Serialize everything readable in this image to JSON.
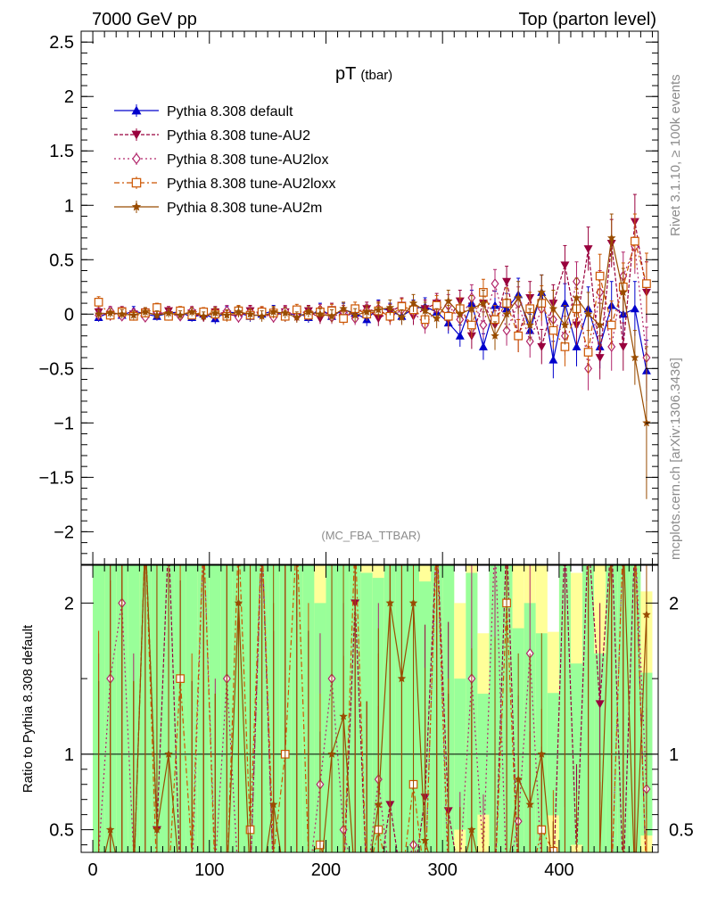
{
  "header": {
    "left_label": "7000 GeV pp",
    "right_label": "Top (parton level)"
  },
  "side_labels": {
    "rivet": "Rivet 3.1.10, ≥ 100k events",
    "mcplots": "mcplots.cern.ch [arXiv:1306.3436]"
  },
  "chart_data": {
    "type": "line",
    "title": "pT",
    "title_sub": "(tbar)",
    "analysis": "(MC_FBA_TTBAR)",
    "xlabel": "",
    "ylabel": "",
    "xlim": [
      -10,
      485
    ],
    "ylim": [
      -2.3,
      2.6
    ],
    "x_ticks": [
      "0",
      "100",
      "200",
      "300",
      "400"
    ],
    "y_ticks": [
      "−2",
      "−1.5",
      "−1",
      "−0.5",
      "0",
      "0.5",
      "1",
      "1.5",
      "2",
      "2.5"
    ],
    "ratio": {
      "ylabel": "Ratio to Pythia 8.308 default",
      "ylim": [
        0.35,
        2.25
      ],
      "y_ticks": [
        "0.5",
        "1",
        "2"
      ],
      "reference": 1
    },
    "legend_position": "top-left",
    "series": [
      {
        "name": "Pythia 8.308 default",
        "color": "#0000cc",
        "marker": "triangle-up",
        "x": [
          5,
          15,
          25,
          35,
          45,
          55,
          65,
          75,
          85,
          95,
          105,
          115,
          125,
          135,
          145,
          155,
          165,
          175,
          185,
          195,
          205,
          215,
          225,
          235,
          245,
          255,
          265,
          275,
          285,
          295,
          305,
          315,
          325,
          335,
          345,
          355,
          365,
          375,
          385,
          395,
          405,
          415,
          425,
          435,
          445,
          455,
          465,
          475
        ],
        "values": [
          -0.03,
          0.02,
          -0.01,
          0.03,
          0.0,
          -0.02,
          0.01,
          0.02,
          -0.03,
          0.0,
          -0.04,
          0.02,
          0.01,
          -0.02,
          0.0,
          0.03,
          -0.02,
          0.01,
          -0.03,
          0.05,
          -0.02,
          0.04,
          0.01,
          -0.05,
          0.06,
          0.03,
          -0.02,
          0.05,
          0.07,
          0.02,
          -0.08,
          -0.2,
          0.1,
          -0.3,
          0.08,
          0.05,
          0.18,
          -0.15,
          0.2,
          -0.42,
          0.1,
          -0.3,
          0.05,
          -0.3,
          0.08,
          0.0,
          0.05,
          -0.52
        ],
        "errors": [
          0.04,
          0.04,
          0.04,
          0.04,
          0.04,
          0.04,
          0.04,
          0.04,
          0.04,
          0.04,
          0.05,
          0.05,
          0.05,
          0.05,
          0.05,
          0.05,
          0.05,
          0.05,
          0.05,
          0.05,
          0.06,
          0.06,
          0.06,
          0.06,
          0.07,
          0.07,
          0.07,
          0.08,
          0.08,
          0.09,
          0.1,
          0.1,
          0.12,
          0.12,
          0.13,
          0.14,
          0.15,
          0.15,
          0.16,
          0.17,
          0.18,
          0.18,
          0.2,
          0.2,
          0.22,
          0.22,
          0.25,
          0.28
        ]
      },
      {
        "name": "Pythia 8.308 tune-AU2",
        "color": "#99003d",
        "marker": "triangle-down",
        "x": [
          5,
          15,
          25,
          35,
          45,
          55,
          65,
          75,
          85,
          95,
          105,
          115,
          125,
          135,
          145,
          155,
          165,
          175,
          185,
          195,
          205,
          215,
          225,
          235,
          245,
          255,
          265,
          275,
          285,
          295,
          305,
          315,
          325,
          335,
          345,
          355,
          365,
          375,
          385,
          395,
          405,
          415,
          425,
          435,
          445,
          455,
          465,
          475
        ],
        "values": [
          0.02,
          -0.02,
          0.03,
          0.0,
          0.02,
          -0.01,
          0.03,
          0.0,
          0.01,
          -0.03,
          0.02,
          0.0,
          -0.02,
          0.03,
          0.01,
          -0.02,
          0.02,
          0.0,
          0.03,
          -0.04,
          0.04,
          -0.03,
          0.02,
          0.05,
          -0.04,
          0.02,
          0.08,
          -0.02,
          0.05,
          0.1,
          -0.05,
          0.12,
          -0.2,
          0.1,
          -0.1,
          0.3,
          -0.2,
          0.15,
          -0.3,
          0.1,
          0.45,
          -0.1,
          0.6,
          -0.4,
          0.65,
          -0.3,
          0.85,
          0.2
        ],
        "errors": [
          0.04,
          0.04,
          0.04,
          0.04,
          0.04,
          0.04,
          0.04,
          0.04,
          0.04,
          0.04,
          0.05,
          0.05,
          0.05,
          0.05,
          0.05,
          0.05,
          0.05,
          0.05,
          0.05,
          0.05,
          0.06,
          0.06,
          0.06,
          0.06,
          0.07,
          0.07,
          0.07,
          0.08,
          0.08,
          0.09,
          0.1,
          0.1,
          0.12,
          0.12,
          0.13,
          0.14,
          0.15,
          0.15,
          0.16,
          0.17,
          0.18,
          0.18,
          0.2,
          0.2,
          0.22,
          0.22,
          0.25,
          0.28
        ]
      },
      {
        "name": "Pythia 8.308 tune-AU2lox",
        "color": "#b2266b",
        "marker": "diamond-open",
        "x": [
          5,
          15,
          25,
          35,
          45,
          55,
          65,
          75,
          85,
          95,
          105,
          115,
          125,
          135,
          145,
          155,
          165,
          175,
          185,
          195,
          205,
          215,
          225,
          235,
          245,
          255,
          265,
          275,
          285,
          295,
          305,
          315,
          325,
          335,
          345,
          355,
          365,
          375,
          385,
          395,
          405,
          415,
          425,
          435,
          445,
          455,
          465,
          475
        ],
        "values": [
          -0.01,
          0.03,
          -0.02,
          0.01,
          -0.03,
          0.02,
          0.0,
          -0.02,
          0.03,
          0.01,
          -0.01,
          0.03,
          -0.03,
          0.02,
          0.0,
          -0.03,
          0.03,
          -0.02,
          0.01,
          0.04,
          -0.03,
          0.02,
          -0.04,
          0.03,
          0.05,
          -0.03,
          0.04,
          0.02,
          -0.1,
          0.05,
          0.08,
          -0.05,
          0.15,
          -0.1,
          0.28,
          -0.15,
          0.1,
          -0.25,
          0.05,
          -0.05,
          -0.2,
          0.3,
          -0.5,
          0.2,
          -0.3,
          0.35,
          0.62,
          -0.4
        ],
        "errors": [
          0.04,
          0.04,
          0.04,
          0.04,
          0.04,
          0.04,
          0.04,
          0.04,
          0.04,
          0.04,
          0.05,
          0.05,
          0.05,
          0.05,
          0.05,
          0.05,
          0.05,
          0.05,
          0.05,
          0.05,
          0.06,
          0.06,
          0.06,
          0.06,
          0.07,
          0.07,
          0.07,
          0.08,
          0.08,
          0.09,
          0.1,
          0.1,
          0.12,
          0.12,
          0.13,
          0.14,
          0.15,
          0.15,
          0.16,
          0.17,
          0.18,
          0.18,
          0.2,
          0.2,
          0.22,
          0.22,
          0.25,
          0.28
        ]
      },
      {
        "name": "Pythia 8.308 tune-AU2loxx",
        "color": "#cc5500",
        "marker": "square-open",
        "x": [
          5,
          15,
          25,
          35,
          45,
          55,
          65,
          75,
          85,
          95,
          105,
          115,
          125,
          135,
          145,
          155,
          165,
          175,
          185,
          195,
          205,
          215,
          225,
          235,
          245,
          255,
          265,
          275,
          285,
          295,
          305,
          315,
          325,
          335,
          345,
          355,
          365,
          375,
          385,
          395,
          405,
          415,
          425,
          435,
          445,
          455,
          465,
          475
        ],
        "values": [
          0.11,
          -0.01,
          0.02,
          -0.02,
          0.01,
          0.06,
          -0.02,
          0.03,
          -0.01,
          0.02,
          0.0,
          -0.02,
          0.03,
          -0.01,
          0.02,
          0.01,
          -0.02,
          0.04,
          -0.01,
          0.02,
          0.03,
          -0.04,
          0.05,
          0.0,
          0.03,
          -0.02,
          0.07,
          0.04,
          -0.05,
          0.08,
          -0.02,
          0.05,
          -0.1,
          0.2,
          -0.05,
          0.1,
          -0.2,
          0.05,
          0.1,
          -0.15,
          -0.3,
          0.05,
          -0.35,
          0.35,
          -0.1,
          0.25,
          0.67,
          0.28
        ],
        "errors": [
          0.05,
          0.04,
          0.04,
          0.04,
          0.04,
          0.04,
          0.04,
          0.04,
          0.04,
          0.04,
          0.05,
          0.05,
          0.05,
          0.05,
          0.05,
          0.05,
          0.05,
          0.05,
          0.05,
          0.05,
          0.06,
          0.06,
          0.06,
          0.06,
          0.07,
          0.07,
          0.07,
          0.08,
          0.08,
          0.09,
          0.1,
          0.1,
          0.12,
          0.12,
          0.13,
          0.14,
          0.15,
          0.15,
          0.16,
          0.17,
          0.18,
          0.18,
          0.2,
          0.2,
          0.22,
          0.22,
          0.25,
          0.28
        ]
      },
      {
        "name": "Pythia 8.308 tune-AU2m",
        "color": "#994c00",
        "marker": "star",
        "x": [
          5,
          15,
          25,
          35,
          45,
          55,
          65,
          75,
          85,
          95,
          105,
          115,
          125,
          135,
          145,
          155,
          165,
          175,
          185,
          195,
          205,
          215,
          225,
          235,
          245,
          255,
          265,
          275,
          285,
          295,
          305,
          315,
          325,
          335,
          345,
          355,
          365,
          375,
          385,
          395,
          405,
          415,
          425,
          435,
          445,
          455,
          465,
          475
        ],
        "values": [
          0.0,
          0.01,
          0.0,
          -0.01,
          0.02,
          -0.01,
          0.01,
          -0.01,
          0.02,
          -0.02,
          0.01,
          -0.01,
          0.02,
          0.0,
          -0.02,
          0.02,
          0.01,
          -0.03,
          0.02,
          0.0,
          -0.02,
          0.05,
          -0.01,
          0.02,
          0.04,
          0.06,
          -0.03,
          0.1,
          0.03,
          -0.04,
          0.12,
          0.0,
          0.05,
          0.1,
          -0.2,
          0.0,
          0.15,
          -0.1,
          0.2,
          0.05,
          -0.1,
          0.15,
          0.0,
          -0.1,
          0.7,
          0.2,
          -0.4,
          -1.0
        ],
        "errors": [
          0.04,
          0.04,
          0.04,
          0.04,
          0.04,
          0.04,
          0.04,
          0.04,
          0.04,
          0.04,
          0.05,
          0.05,
          0.05,
          0.05,
          0.05,
          0.05,
          0.05,
          0.05,
          0.05,
          0.05,
          0.06,
          0.06,
          0.06,
          0.06,
          0.07,
          0.07,
          0.07,
          0.08,
          0.08,
          0.09,
          0.1,
          0.1,
          0.12,
          0.12,
          0.13,
          0.14,
          0.15,
          0.15,
          0.16,
          0.17,
          0.18,
          0.18,
          0.2,
          0.2,
          0.22,
          0.22,
          0.25,
          0.7
        ]
      }
    ]
  }
}
